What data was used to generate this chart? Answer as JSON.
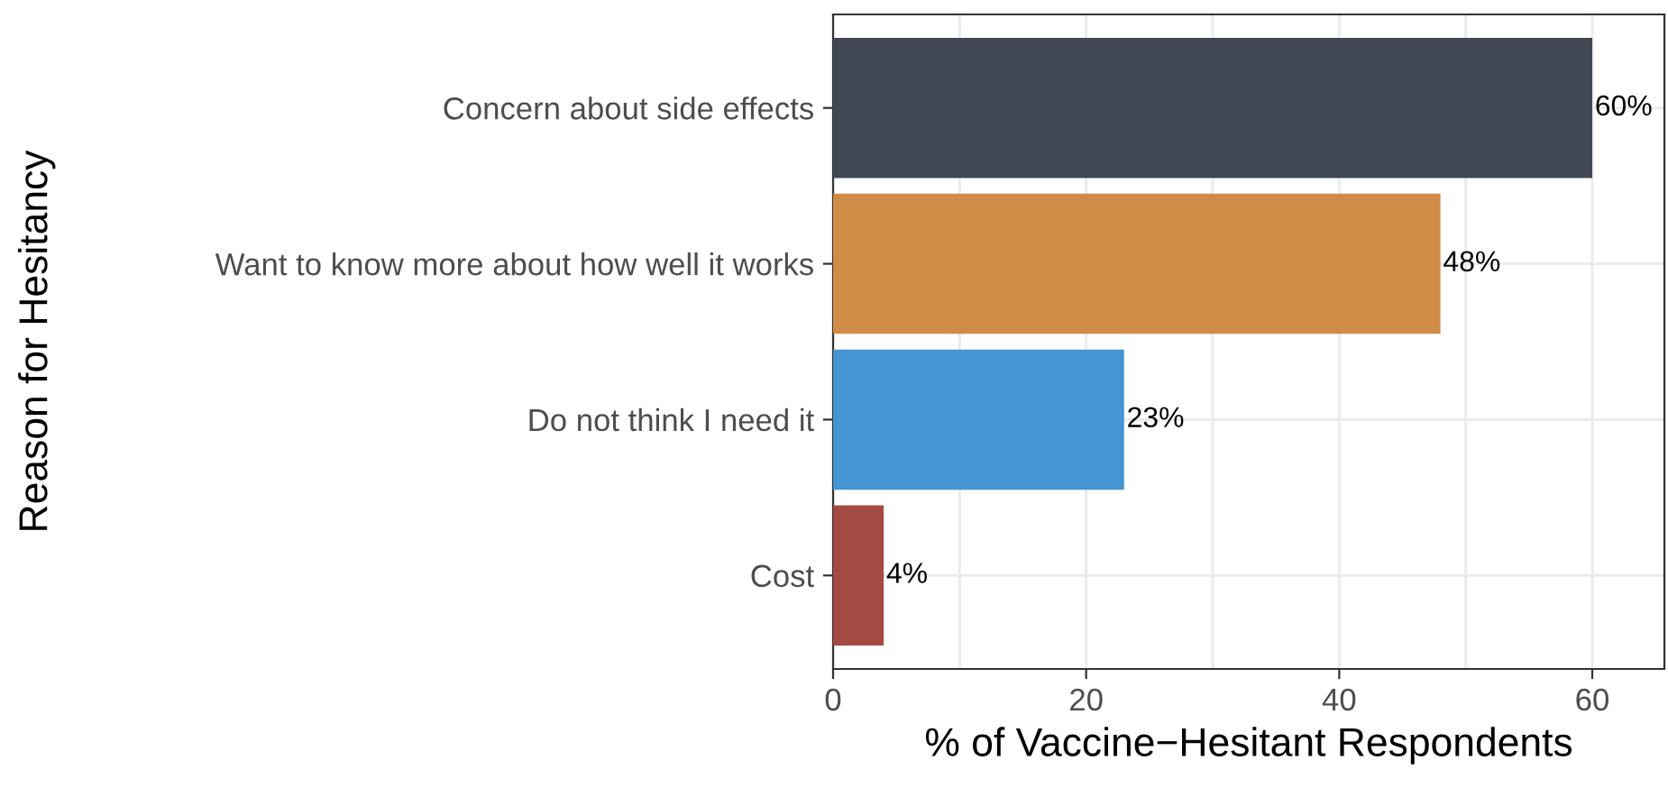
{
  "chart_data": {
    "type": "bar",
    "orientation": "horizontal",
    "xlabel": "% of Vaccine−Hesitant Respondents",
    "ylabel": "Reason for Hesitancy",
    "categories": [
      "Concern about side effects",
      "Want to know more about how well it works",
      "Do not think I need it",
      "Cost"
    ],
    "values": [
      60,
      48,
      23,
      4
    ],
    "colors": [
      "#414853",
      "#d08c46",
      "#4495d1",
      "#a34a42"
    ],
    "value_labels": [
      "60%",
      "48%",
      "23%",
      "4%"
    ],
    "xlim": [
      0,
      65.7
    ],
    "xticks": [
      0,
      {
        "value": 10,
        "label": null
      },
      20,
      {
        "value": 30,
        "label": null
      },
      40,
      {
        "value": 50,
        "label": null
      },
      60
    ],
    "grid": true
  }
}
